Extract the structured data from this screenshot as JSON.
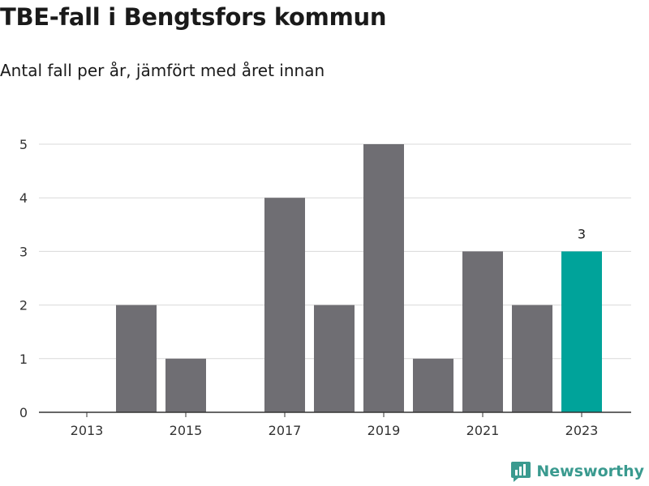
{
  "title": "TBE-fall i Bengtsfors kommun",
  "subtitle": "Antal fall per år, jämfört med året innan",
  "brand": "Newsworthy",
  "colors": {
    "bar": "#6f6e73",
    "highlight": "#00a39a",
    "grid": "#d9d9d9",
    "axis": "#333333",
    "brand": "#3a9a8f"
  },
  "chart_data": {
    "type": "bar",
    "categories": [
      "2013",
      "2014",
      "2015",
      "2016",
      "2017",
      "2018",
      "2019",
      "2020",
      "2021",
      "2022",
      "2023"
    ],
    "values": [
      0,
      2,
      1,
      0,
      4,
      2,
      5,
      1,
      3,
      2,
      3
    ],
    "x_tick_labels": [
      "2013",
      "2015",
      "2017",
      "2019",
      "2021",
      "2023"
    ],
    "y_ticks": [
      0,
      1,
      2,
      3,
      4,
      5
    ],
    "ylim": [
      0,
      5
    ],
    "highlight_category": "2023",
    "highlight_label": "3",
    "grid": true
  }
}
